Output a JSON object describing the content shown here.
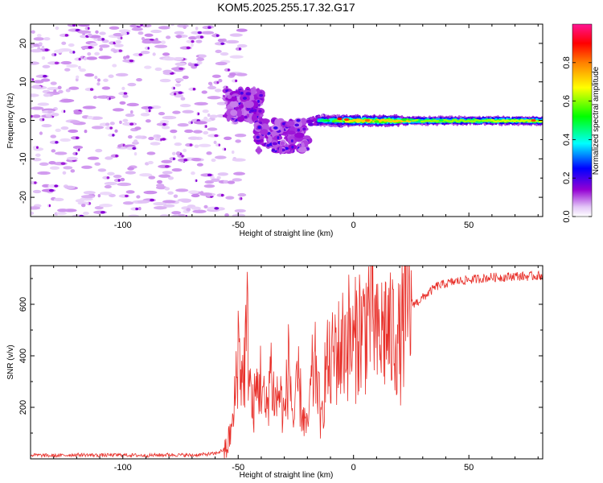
{
  "title": "KOM5.2025.255.17.32.G17",
  "colors": {
    "snr_line": "#e8302a",
    "spectrum_strong": "#e81e2e",
    "spectrum_mid": "#20e020",
    "spectrum_low": "#1a14e0",
    "spectrum_faint": "#c9a6f2"
  },
  "chart_data": [
    {
      "type": "heatmap",
      "title": "",
      "xlabel": "Height of straight line (km)",
      "ylabel": "Frequency (Hz)",
      "xlim": [
        -140,
        82
      ],
      "ylim": [
        -25,
        25
      ],
      "x_ticks": [
        -100,
        -50,
        0,
        50
      ],
      "y_ticks": [
        -20,
        -10,
        0,
        10,
        20
      ],
      "colorbar": {
        "label": "Normalized spectral amplitude",
        "range": [
          0,
          1
        ],
        "ticks": [
          0.0,
          0.2,
          0.4,
          0.6,
          0.8
        ],
        "tick_labels": [
          "0.0",
          "0.2",
          "0.4",
          "0.6",
          "0.8"
        ],
        "colormap": [
          "#ffffff",
          "#9400d3",
          "#0000ff",
          "#00ffff",
          "#00ff00",
          "#ffff00",
          "#ff7f00",
          "#ff0000",
          "#ff1493"
        ]
      },
      "features": [
        {
          "name": "faint background scatter",
          "x_range": [
            -140,
            -60
          ],
          "y_range": [
            -25,
            25
          ],
          "amplitude": 0.05
        },
        {
          "name": "transition cluster upper",
          "x_range": [
            -55,
            -40
          ],
          "y_range": [
            0,
            8
          ],
          "amplitude": 0.15
        },
        {
          "name": "transition cluster lower",
          "x_range": [
            -42,
            -20
          ],
          "y_range": [
            -8,
            0
          ],
          "amplitude": 0.15
        },
        {
          "name": "signal line onset",
          "x_range": [
            -20,
            0
          ],
          "y_range": [
            -1.5,
            1.5
          ],
          "amplitude": 0.35
        },
        {
          "name": "signal line main",
          "x_range": [
            0,
            82
          ],
          "y_range": [
            -1,
            1
          ],
          "amplitude": 0.6
        }
      ]
    },
    {
      "type": "line",
      "title": "",
      "xlabel": "Height of straight line (km)",
      "ylabel": "SNR (v/v)",
      "xlim": [
        -140,
        82
      ],
      "ylim": [
        0,
        750
      ],
      "x_ticks": [
        -100,
        -50,
        0,
        50
      ],
      "y_ticks": [
        200,
        400,
        600
      ],
      "series": [
        {
          "name": "SNR",
          "x": [
            -140,
            -130,
            -120,
            -110,
            -100,
            -90,
            -80,
            -70,
            -60,
            -55,
            -52,
            -50,
            -48,
            -46,
            -44,
            -42,
            -40,
            -38,
            -36,
            -34,
            -32,
            -30,
            -28,
            -26,
            -24,
            -22,
            -20,
            -18,
            -16,
            -14,
            -12,
            -10,
            -8,
            -6,
            -4,
            -2,
            0,
            2,
            4,
            6,
            8,
            10,
            12,
            14,
            16,
            18,
            20,
            22,
            25,
            28,
            32,
            36,
            40,
            45,
            50,
            55,
            60,
            65,
            70,
            75,
            82
          ],
          "values": [
            15,
            12,
            16,
            14,
            15,
            13,
            16,
            14,
            20,
            40,
            150,
            450,
            300,
            500,
            180,
            260,
            320,
            160,
            360,
            220,
            260,
            160,
            380,
            130,
            300,
            170,
            110,
            310,
            360,
            120,
            370,
            340,
            430,
            410,
            460,
            480,
            420,
            520,
            490,
            560,
            610,
            450,
            480,
            520,
            470,
            510,
            440,
            540,
            600,
            610,
            640,
            670,
            680,
            690,
            695,
            700,
            705,
            705,
            710,
            708,
            712
          ]
        }
      ]
    }
  ]
}
